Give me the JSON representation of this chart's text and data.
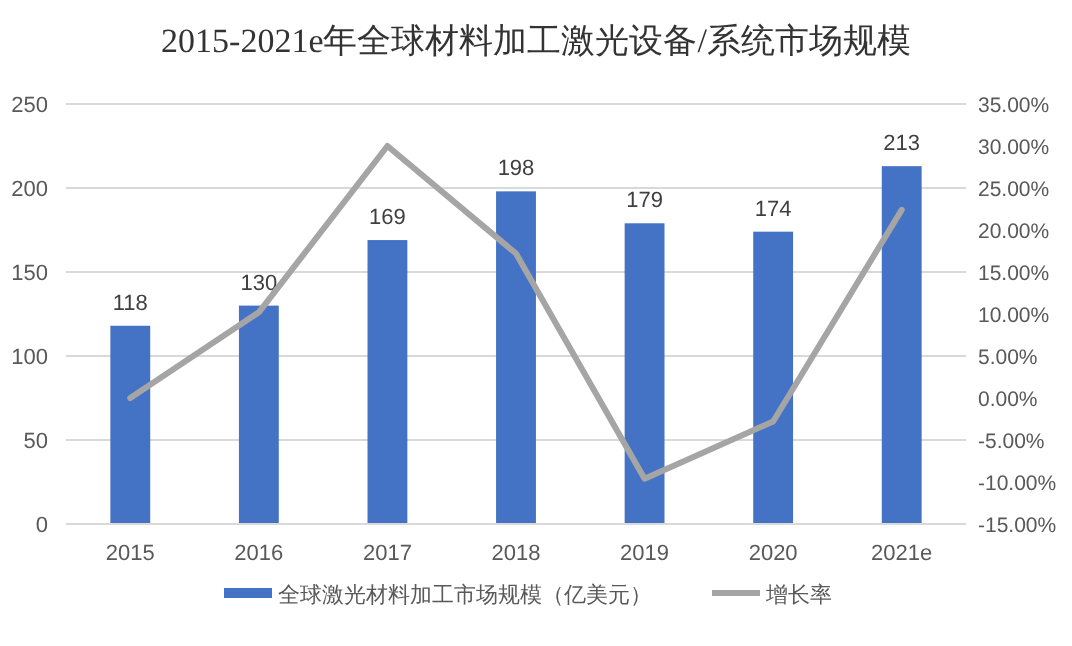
{
  "chart_data": {
    "type": "bar",
    "title": "2015-2021e年全球材料加工激光设备/系统市场规模",
    "categories": [
      "2015",
      "2016",
      "2017",
      "2018",
      "2019",
      "2020",
      "2021e"
    ],
    "series": [
      {
        "name": "全球激光材料加工市场规模（亿美元）",
        "color": "#4472c4",
        "values": [
          118,
          130,
          169,
          198,
          179,
          174,
          213
        ],
        "value_labels": [
          "118",
          "130",
          "169",
          "198",
          "179",
          "174",
          "213"
        ]
      },
      {
        "name": "增长率",
        "type": "line",
        "axis": "y2",
        "color": "#a5a5a5",
        "values": [
          0,
          10.2,
          30,
          17.2,
          -9.6,
          -2.8,
          22.4
        ]
      }
    ],
    "ylim": [
      0,
      250
    ],
    "yticks": [
      0,
      50,
      100,
      150,
      200,
      250
    ],
    "y2lim": [
      -15,
      35
    ],
    "y2ticks": [
      {
        "value": -15,
        "label": "-15.00%"
      },
      {
        "value": -10,
        "label": "-10.00%"
      },
      {
        "value": -5,
        "label": "-5.00%"
      },
      {
        "value": 0,
        "label": "0.00%"
      },
      {
        "value": 5,
        "label": "5.00%"
      },
      {
        "value": 10,
        "label": "10.00%"
      },
      {
        "value": 15,
        "label": "15.00%"
      },
      {
        "value": 20,
        "label": "20.00%"
      },
      {
        "value": 25,
        "label": "25.00%"
      },
      {
        "value": 30,
        "label": "30.00%"
      },
      {
        "value": 35,
        "label": "35.00%"
      }
    ],
    "grid": "y",
    "legend": "bottom"
  }
}
